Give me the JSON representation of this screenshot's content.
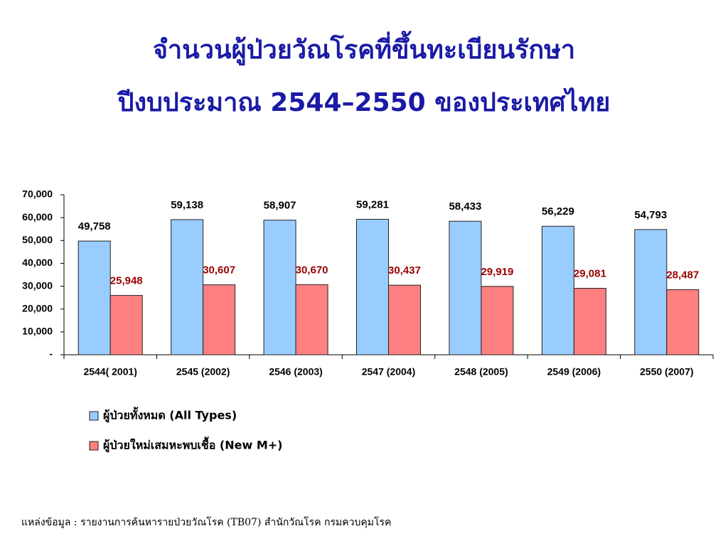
{
  "chart_data": {
    "type": "bar",
    "title": "จำนวนผู้ป่วยวัณโรคที่ขึ้นทะเบียนรักษา",
    "subtitle": "ปีงบประมาณ 2544–2550 ของประเทศไทย",
    "categories": [
      "2544( 2001)",
      "2545 (2002)",
      "2546 (2003)",
      "2547 (2004)",
      "2548 (2005)",
      "2549 (2006)",
      "2550 (2007)"
    ],
    "series": [
      {
        "name": "ผู้ป่วยทั้งหมด (All Types)",
        "color": "#99ccff",
        "label_color": "#000000",
        "values": [
          49758,
          59138,
          58907,
          59281,
          58433,
          56229,
          54793
        ],
        "value_labels": [
          "49,758",
          "59,138",
          "58,907",
          "59,281",
          "58,433",
          "56,229",
          "54,793"
        ]
      },
      {
        "name": "ผู้ป่วยใหม่เสมหะพบเชื้อ (New M+)",
        "color": "#ff8080",
        "label_color": "#990000",
        "values": [
          25948,
          30607,
          30670,
          30437,
          29919,
          29081,
          28487
        ],
        "value_labels": [
          "25,948",
          "30,607",
          "30,670",
          "30,437",
          "29,919",
          "29,081",
          "28,487"
        ]
      }
    ],
    "ylim": [
      0,
      70000
    ],
    "yticks": [
      {
        "value": 0,
        "label": "-"
      },
      {
        "value": 10000,
        "label": "10,000"
      },
      {
        "value": 20000,
        "label": "20,000"
      },
      {
        "value": 30000,
        "label": "30,000"
      },
      {
        "value": 40000,
        "label": "40,000"
      },
      {
        "value": 50000,
        "label": "50,000"
      },
      {
        "value": 60000,
        "label": "60,000"
      },
      {
        "value": 70000,
        "label": "70,000"
      }
    ],
    "grid": false,
    "legend": "bottom",
    "source": "แหล่งข้อมูล   :  รายงานการค้นหารายป่วยวัณโรค (TB07)    สำนักวัณโรค กรมควบคุมโรค"
  }
}
